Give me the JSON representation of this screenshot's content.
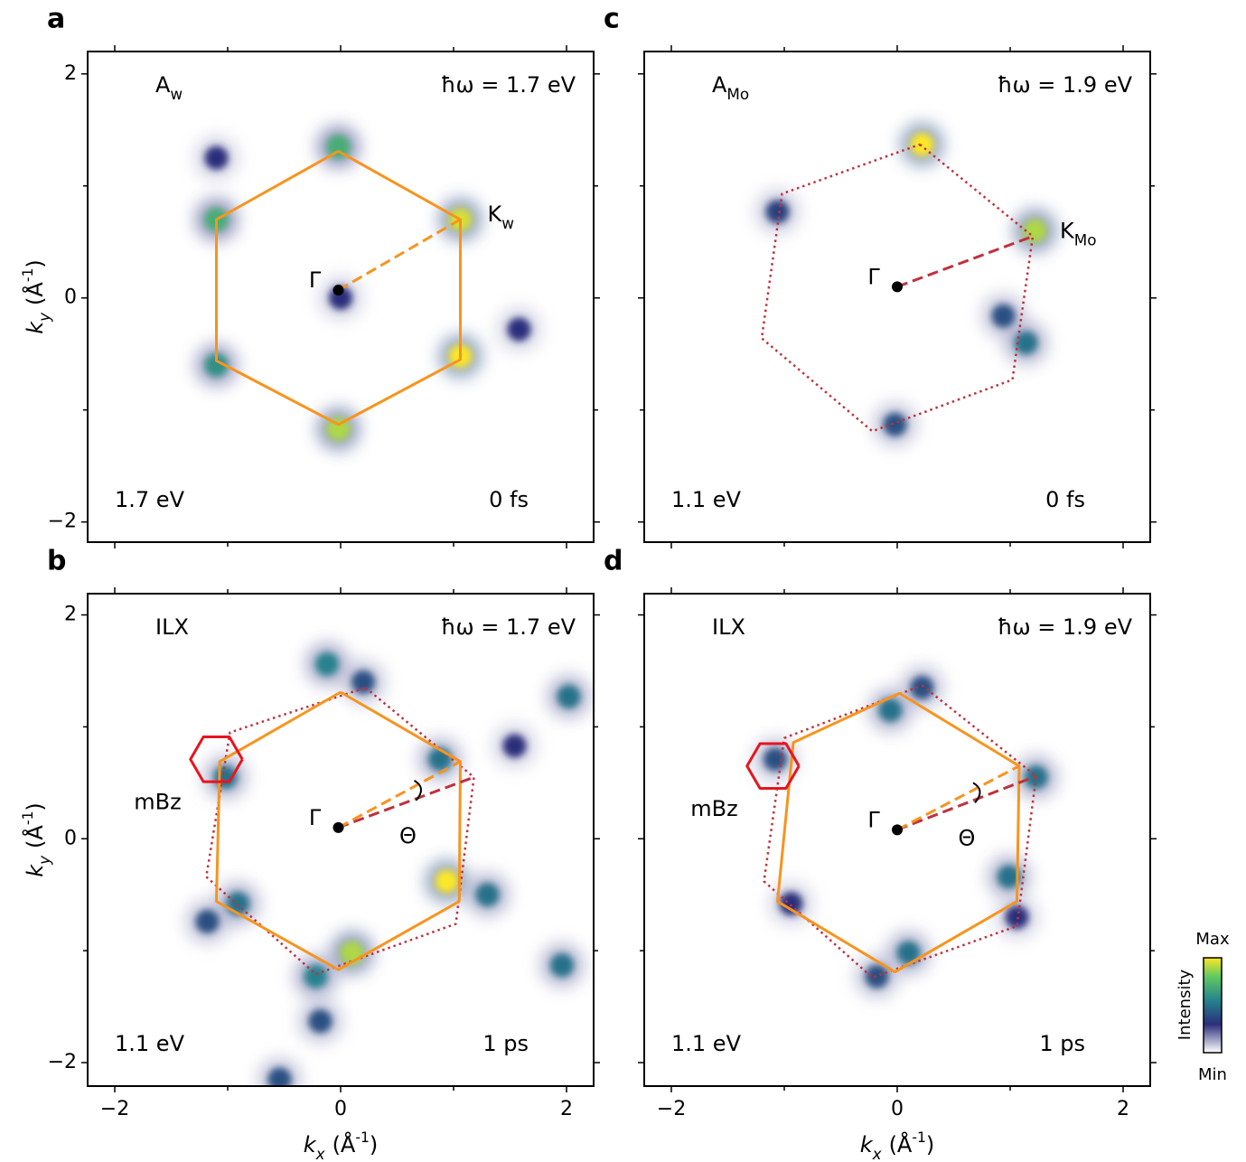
{
  "chart_data": [
    {
      "type": "heatmap",
      "label": "a",
      "species": {
        "main": "A",
        "sub": "w",
        "color": "#f7941d"
      },
      "photon_energy": "ħω = 1.7 eV",
      "energy": "1.7 eV",
      "delay": "0 fs",
      "gamma": {
        "text": "Γ",
        "x": -0.02,
        "y": 0.07
      },
      "k_label": {
        "main": "K",
        "sub": "w",
        "color": "#f7941d"
      },
      "xlim": [
        -2.24,
        2.24
      ],
      "ylim": [
        -2.18,
        2.2
      ],
      "xticks": [
        -2,
        0,
        2
      ],
      "xminor": [
        -1,
        1
      ],
      "xticklabels": false,
      "yticks": [
        {
          "value": -2,
          "label": "−2"
        },
        0,
        2
      ],
      "yminor": [
        -1,
        1
      ],
      "yticklabels": true,
      "ylabel": {
        "symbol": "k",
        "sub": "y",
        "unit": "(Å",
        "sup": "-1",
        "close": ")"
      },
      "spots": {
        "x": [
          -0.02,
          -1.1,
          1.06,
          1.06,
          -1.1,
          -0.02,
          0,
          1.58,
          -1.1
        ],
        "values": [
          1.35,
          0.7,
          0.7,
          -0.52,
          -0.6,
          -1.17,
          0,
          -0.28,
          1.25
        ],
        "intensity": [
          0.7,
          0.7,
          0.95,
          1.0,
          0.6,
          0.9,
          0.3,
          0.3,
          0.3
        ]
      },
      "lines": [
        {
          "color": "#f7941d",
          "style": "solid",
          "x": [
            -0.02,
            1.06,
            1.06,
            -0.02,
            -1.1,
            -1.1,
            -0.02
          ],
          "values": [
            1.31,
            0.7,
            -0.55,
            -1.13,
            -0.56,
            0.7,
            1.31
          ]
        },
        {
          "color": "#f7941d",
          "style": "dashed",
          "x": [
            -0.02,
            1.06
          ],
          "values": [
            0.07,
            0.7
          ]
        }
      ]
    },
    {
      "type": "heatmap",
      "label": "b",
      "species": {
        "main": "ILX",
        "color": "#e8141e"
      },
      "photon_energy": "ħω = 1.7 eV",
      "energy": "1.1 eV",
      "delay": "1 ps",
      "gamma": {
        "text": "Γ",
        "x": -0.02,
        "y": 0.1
      },
      "mbz": {
        "text": "mBz",
        "color": "#e8141e"
      },
      "theta": "Θ",
      "xlim": [
        -2.24,
        2.24
      ],
      "ylim": [
        -2.21,
        2.19
      ],
      "xticks": [
        {
          "value": -2,
          "label": "−2"
        },
        0,
        2
      ],
      "xminor": [
        -1,
        1
      ],
      "xticklabels": true,
      "yticks": [
        {
          "value": -2,
          "label": "−2"
        },
        0,
        2
      ],
      "yminor": [
        -1,
        1
      ],
      "yticklabels": true,
      "xlabel": {
        "symbol": "k",
        "sub": "x",
        "unit": "(Å",
        "sup": "-1",
        "close": ")"
      },
      "ylabel": {
        "symbol": "k",
        "sub": "y",
        "unit": "(Å",
        "sup": "-1",
        "close": ")"
      },
      "spots": {
        "x": [
          -0.12,
          0.2,
          0.88,
          0.94,
          1.3,
          0.1,
          -0.22,
          -0.91,
          -1.02,
          2.02,
          1.96,
          -0.18,
          -1.18,
          -0.54,
          1.54
        ],
        "values": [
          1.56,
          1.4,
          0.71,
          -0.38,
          -0.5,
          -1.02,
          -1.23,
          -0.58,
          0.55,
          1.27,
          -1.13,
          -1.63,
          -0.74,
          -2.15,
          0.83
        ],
        "intensity": [
          0.55,
          0.4,
          0.5,
          1.0,
          0.5,
          0.9,
          0.55,
          0.5,
          0.5,
          0.5,
          0.5,
          0.4,
          0.4,
          0.4,
          0.3
        ]
      },
      "lines": [
        {
          "color": "#c0313d",
          "style": "dotted",
          "x": [
            0.22,
            1.18,
            1.02,
            -0.22,
            -1.19,
            -0.98,
            0.22
          ],
          "values": [
            1.35,
            0.55,
            -0.76,
            -1.21,
            -0.34,
            0.95,
            1.35
          ]
        },
        {
          "color": "#f7941d",
          "style": "solid",
          "x": [
            0,
            1.06,
            1.05,
            -0.02,
            -1.1,
            -1.07,
            0
          ],
          "values": [
            1.31,
            0.69,
            -0.56,
            -1.17,
            -0.56,
            0.69,
            1.31
          ]
        },
        {
          "color": "#e8141e",
          "style": "solid",
          "x": [
            -0.87,
            -0.985,
            -1.215,
            -1.33,
            -1.215,
            -0.985,
            -0.87
          ],
          "values": [
            0.71,
            0.91,
            0.91,
            0.71,
            0.51,
            0.51,
            0.71
          ]
        },
        {
          "color": "#c0313d",
          "style": "dashed",
          "x": [
            -0.02,
            1.18
          ],
          "values": [
            0.1,
            0.55
          ]
        },
        {
          "color": "#f7941d",
          "style": "dashed",
          "x": [
            -0.02,
            1.06
          ],
          "values": [
            0.1,
            0.69
          ]
        }
      ]
    },
    {
      "type": "heatmap",
      "label": "c",
      "species": {
        "main": "A",
        "sub": "Mo",
        "color": "#c0363c"
      },
      "photon_energy": "ħω = 1.9 eV",
      "energy": "1.1 eV",
      "delay": "0 fs",
      "gamma": {
        "text": "Γ",
        "x": 0,
        "y": 0.1
      },
      "k_label": {
        "main": "K",
        "sub": "Mo",
        "color": "#c0363c"
      },
      "xlim": [
        -2.24,
        2.24
      ],
      "ylim": [
        -2.18,
        2.2
      ],
      "xticks": [
        -2,
        0,
        2
      ],
      "xminor": [
        -1,
        1
      ],
      "xticklabels": false,
      "yticks": [
        -2,
        0,
        2
      ],
      "yminor": [
        -1,
        1
      ],
      "yticklabels": false,
      "spots": {
        "x": [
          0.22,
          1.22,
          1.14,
          -0.02,
          -1.06,
          0.94
        ],
        "values": [
          1.37,
          0.6,
          -0.4,
          -1.13,
          0.77,
          -0.16
        ],
        "intensity": [
          1.0,
          0.9,
          0.5,
          0.4,
          0.35,
          0.4
        ]
      },
      "lines": [
        {
          "color": "#c0313d",
          "style": "dotted",
          "x": [
            0.2,
            1.2,
            1.02,
            -0.22,
            -1.2,
            -1.02,
            0.2
          ],
          "values": [
            1.37,
            0.55,
            -0.73,
            -1.19,
            -0.36,
            0.93,
            1.37
          ]
        },
        {
          "color": "#c0313d",
          "style": "dashed",
          "x": [
            0,
            1.2
          ],
          "values": [
            0.1,
            0.55
          ]
        }
      ]
    },
    {
      "type": "heatmap",
      "label": "d",
      "species": {
        "main": "ILX",
        "color": "#e8141e"
      },
      "photon_energy": "ħω = 1.9 eV",
      "energy": "1.1 eV",
      "delay": "1 ps",
      "gamma": {
        "text": "Γ",
        "x": 0,
        "y": 0.08
      },
      "mbz": {
        "text": "mBz",
        "color": "#e8141e"
      },
      "theta": "Θ",
      "xlim": [
        -2.24,
        2.24
      ],
      "ylim": [
        -2.21,
        2.19
      ],
      "xticks": [
        {
          "value": -2,
          "label": "−2"
        },
        0,
        2
      ],
      "xminor": [
        -1,
        1
      ],
      "xticklabels": true,
      "yticks": [
        -2,
        0,
        2
      ],
      "yminor": [
        -1,
        1
      ],
      "yticklabels": false,
      "xlabel": {
        "symbol": "k",
        "sub": "x",
        "unit": "(Å",
        "sup": "-1",
        "close": ")"
      },
      "spots": {
        "x": [
          -0.06,
          0.22,
          1.23,
          0.99,
          0.1,
          -0.18,
          -0.94,
          -1.08,
          1.06
        ],
        "values": [
          1.15,
          1.35,
          0.55,
          -0.34,
          -1.02,
          -1.23,
          -0.58,
          0.71,
          -0.7
        ],
        "intensity": [
          0.5,
          0.4,
          0.5,
          0.5,
          0.5,
          0.4,
          0.3,
          0.4,
          0.3
        ]
      },
      "lines": [
        {
          "color": "#c0313d",
          "style": "dotted",
          "x": [
            0.22,
            1.23,
            1.06,
            -0.22,
            -1.18,
            -1.0,
            0.22
          ],
          "values": [
            1.37,
            0.56,
            -0.78,
            -1.24,
            -0.38,
            0.9,
            1.37
          ]
        },
        {
          "color": "#f7941d",
          "style": "solid",
          "x": [
            0.02,
            1.08,
            1.06,
            -0.02,
            -1.06,
            -0.92,
            0.02
          ],
          "values": [
            1.3,
            0.65,
            -0.56,
            -1.19,
            -0.56,
            0.86,
            1.3
          ]
        },
        {
          "color": "#e8141e",
          "style": "solid",
          "x": [
            -0.87,
            -0.985,
            -1.215,
            -1.33,
            -1.215,
            -0.985,
            -0.87
          ],
          "values": [
            0.65,
            0.85,
            0.85,
            0.65,
            0.45,
            0.45,
            0.65
          ]
        },
        {
          "color": "#c0313d",
          "style": "dashed",
          "x": [
            0,
            1.23
          ],
          "values": [
            0.08,
            0.56
          ]
        },
        {
          "color": "#f7941d",
          "style": "dashed",
          "x": [
            0,
            1.08
          ],
          "values": [
            0.08,
            0.65
          ]
        }
      ]
    }
  ],
  "colorbar": {
    "max": "Max",
    "label": "Intensity",
    "min": "Min"
  }
}
